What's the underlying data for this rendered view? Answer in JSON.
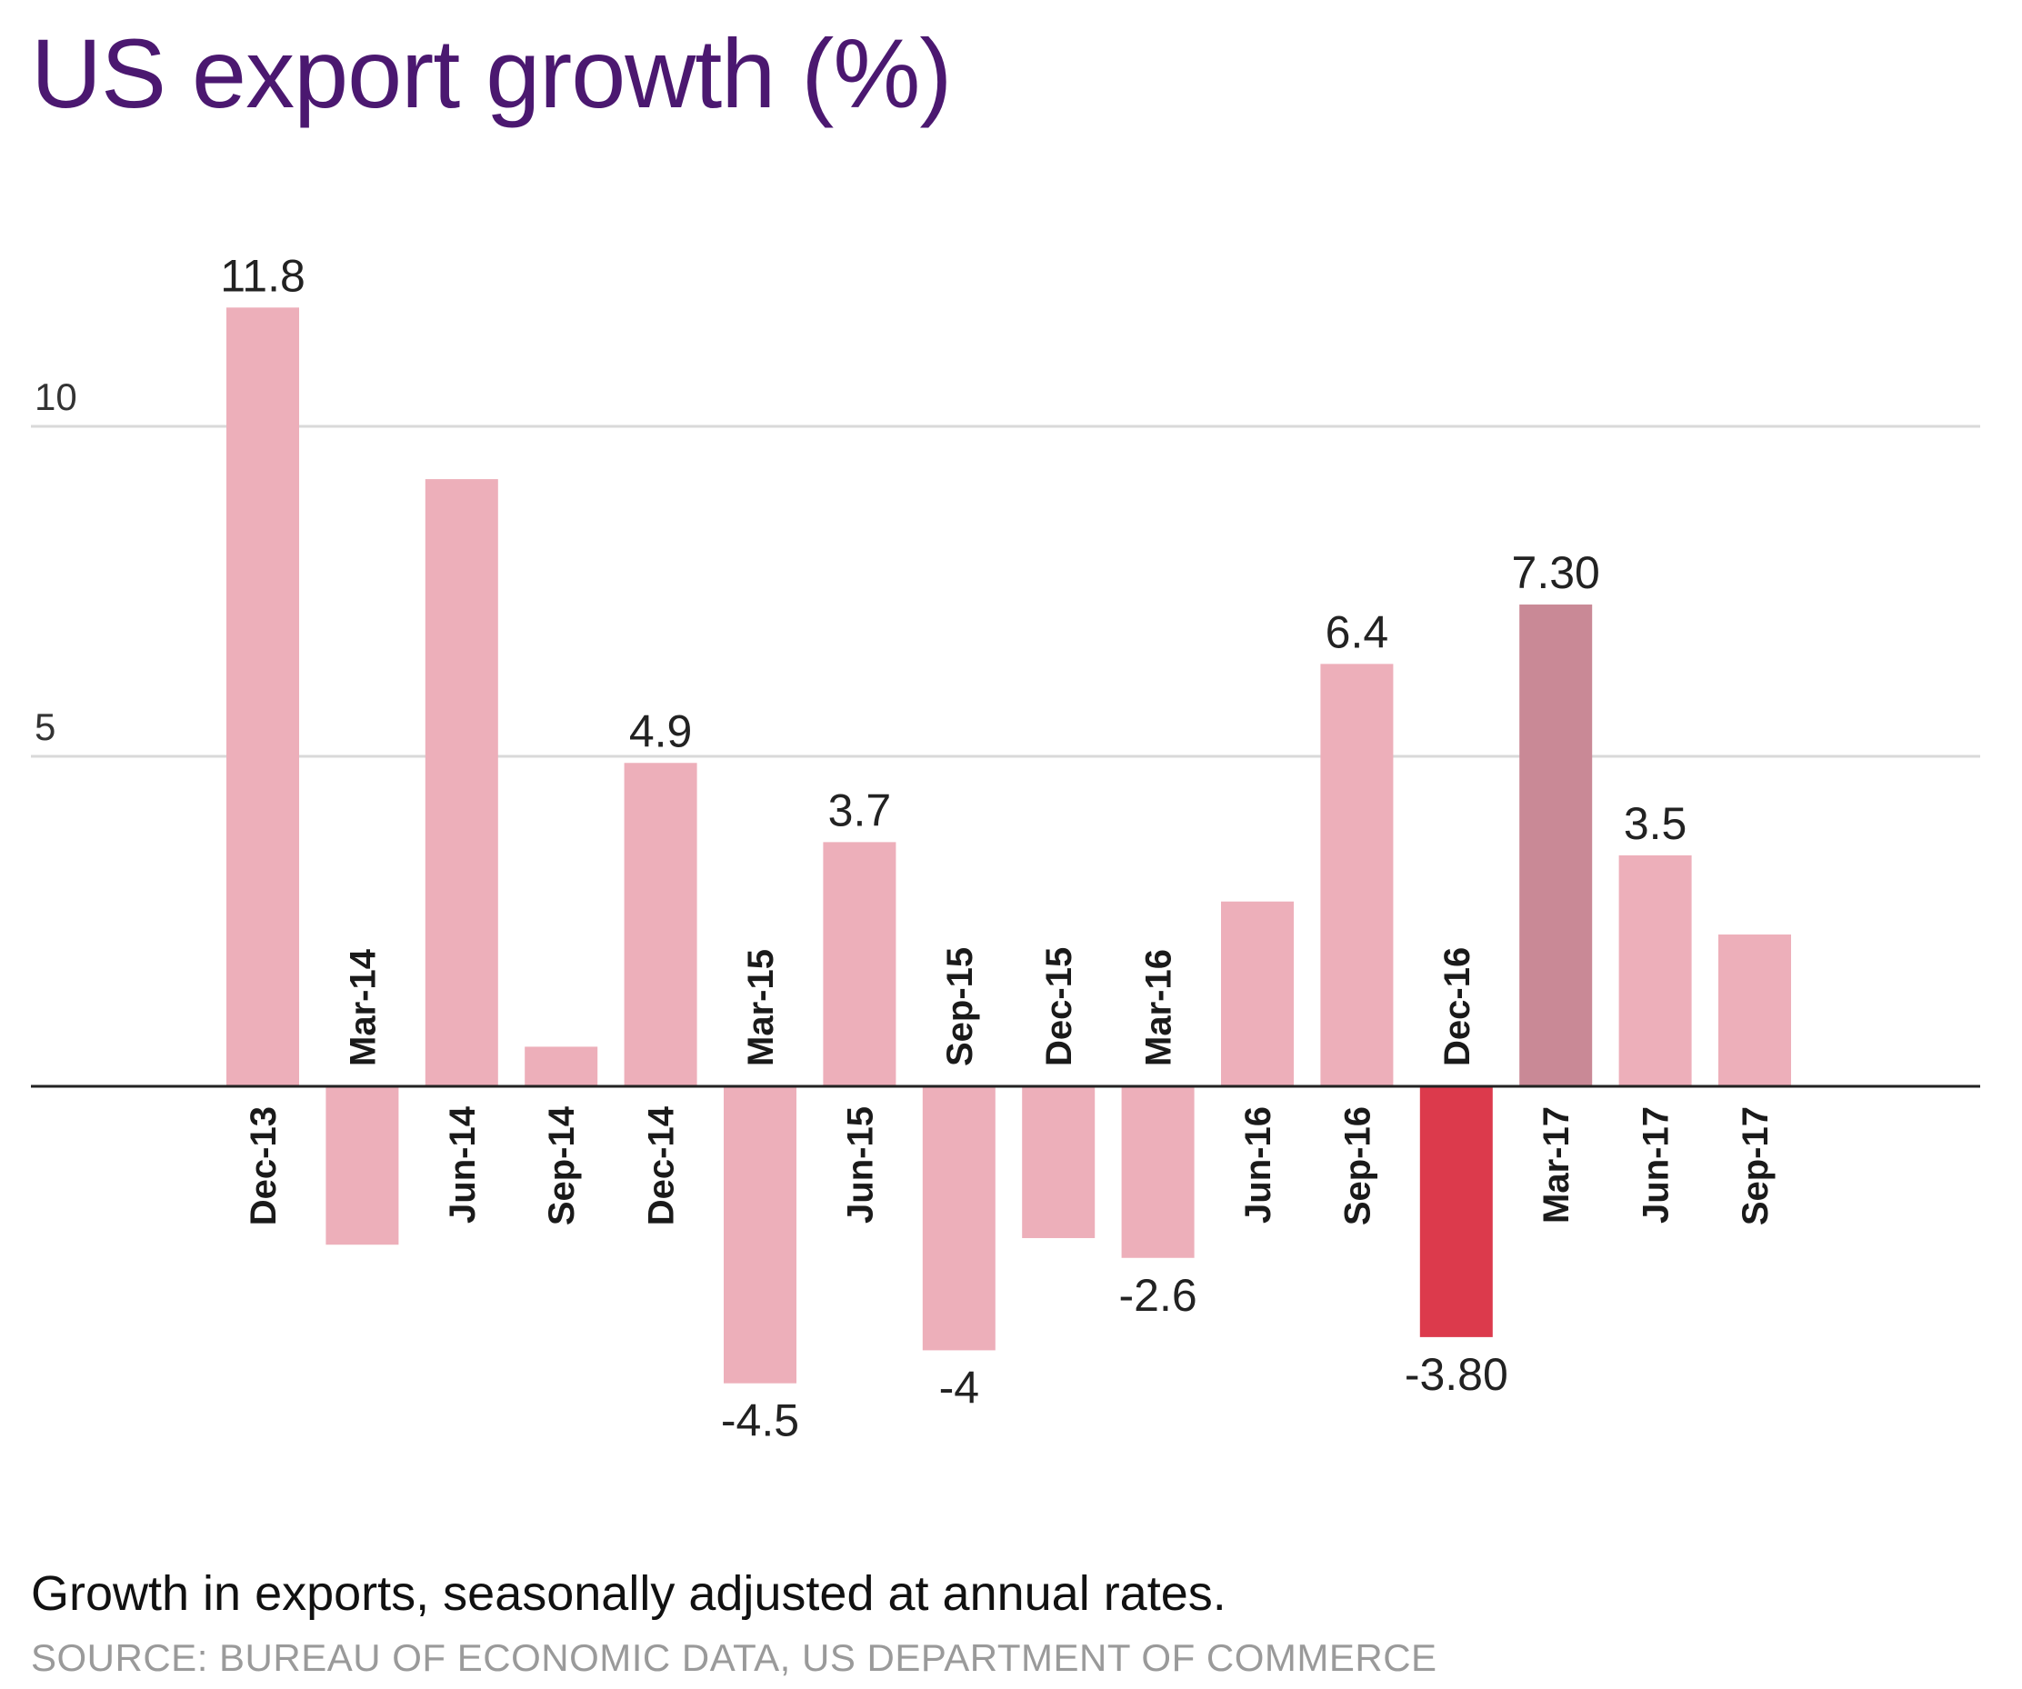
{
  "title": "US export growth (%)",
  "subtitle": "Growth in exports, seasonally adjusted at annual rates.",
  "source": "SOURCE: BUREAU OF ECONOMIC DATA, US DEPARTMENT OF COMMERCE",
  "colors": {
    "default_bar": "#edafba",
    "highlight_positive": "#c98996",
    "highlight_negative": "#dc3a4c",
    "title": "#4b1870",
    "gridline": "#d9d9d9",
    "axis": "#222222"
  },
  "chart_data": {
    "type": "bar",
    "title": "US export growth (%)",
    "xlabel": "",
    "ylabel": "",
    "ylim": [
      -6,
      13
    ],
    "y_ticks": [
      5,
      10
    ],
    "grid": true,
    "categories": [
      "Dec-13",
      "Mar-14",
      "Jun-14",
      "Sep-14",
      "Dec-14",
      "Mar-15",
      "Jun-15",
      "Sep-15",
      "Dec-15",
      "Mar-16",
      "Jun-16",
      "Sep-16",
      "Dec-16",
      "Mar-17",
      "Jun-17",
      "Sep-17"
    ],
    "values": [
      11.8,
      -2.4,
      9.2,
      0.6,
      4.9,
      -4.5,
      3.7,
      -4.0,
      -2.3,
      -2.6,
      2.8,
      6.4,
      -3.8,
      7.3,
      3.5,
      2.3
    ],
    "data_labels": [
      "11.8",
      "",
      "",
      "",
      "4.9",
      "-4.5",
      "3.7",
      "-4",
      "",
      "-2.6",
      "",
      "6.4",
      "-3.80",
      "7.30",
      "3.5",
      ""
    ],
    "highlight": [
      "",
      "",
      "",
      "",
      "",
      "",
      "",
      "",
      "",
      "",
      "",
      "",
      "negative",
      "positive",
      "",
      ""
    ]
  }
}
